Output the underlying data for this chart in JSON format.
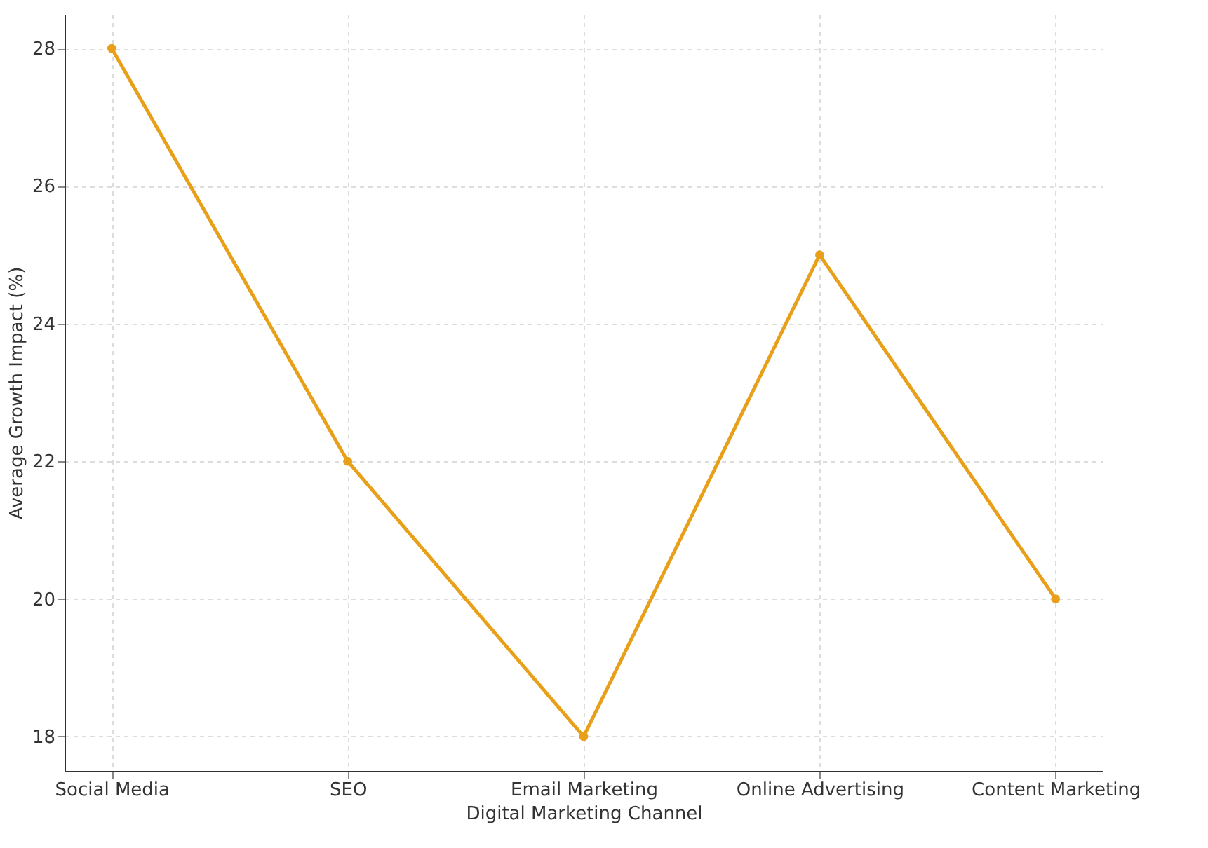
{
  "chart_data": {
    "type": "line",
    "xlabel": "Digital Marketing Channel",
    "ylabel": "Average Growth Impact (%)",
    "categories": [
      "Social Media",
      "SEO",
      "Email Marketing",
      "Online Advertising",
      "Content Marketing"
    ],
    "series": [
      {
        "color": "#e8a01a",
        "values": [
          28,
          22,
          18,
          25,
          20
        ]
      }
    ],
    "ylim": [
      17.5,
      28.5
    ],
    "yticks": [
      18,
      20,
      22,
      24,
      26,
      28
    ],
    "grid": true,
    "marker": "circle",
    "line_style": "solid"
  }
}
